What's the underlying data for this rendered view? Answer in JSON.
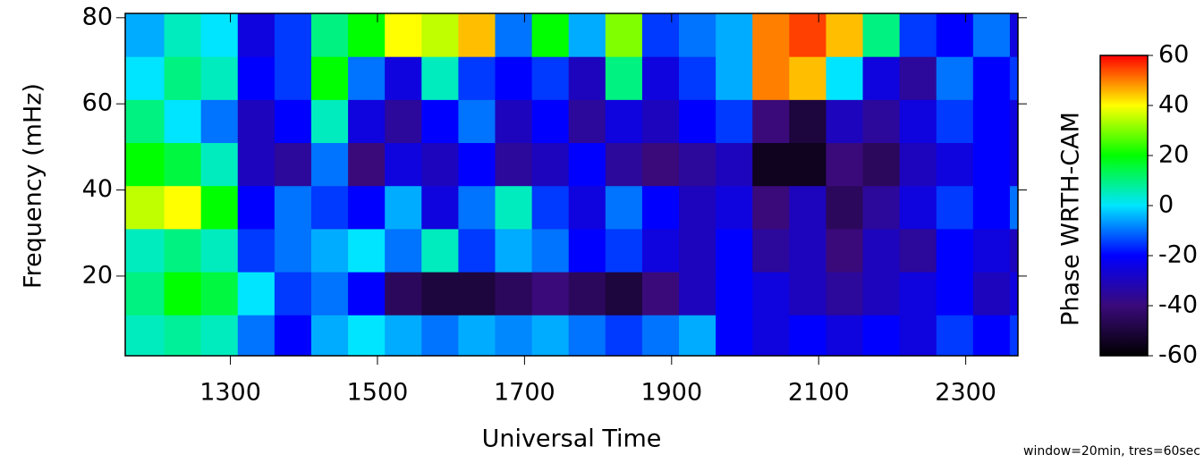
{
  "chart_data": {
    "type": "heatmap",
    "x_label": "Universal Time",
    "y_label": "Frequency (mHz)",
    "colorbar_label": "Phase WRTH-CAM",
    "note": "window=20min, tres=60sec",
    "xlim": [
      11.57,
      23.71
    ],
    "xticks": [
      {
        "value": 13,
        "label": "1300"
      },
      {
        "value": 15,
        "label": "1500"
      },
      {
        "value": 17,
        "label": "1700"
      },
      {
        "value": 19,
        "label": "1900"
      },
      {
        "value": 21,
        "label": "2100"
      },
      {
        "value": 23,
        "label": "2300"
      }
    ],
    "ylim": [
      1.5,
      81
    ],
    "yticks": [
      20,
      40,
      60,
      80
    ],
    "x_bins": [
      11.57,
      12.1,
      12.6,
      13.1,
      13.6,
      14.1,
      14.6,
      15.1,
      15.6,
      16.1,
      16.6,
      17.1,
      17.6,
      18.1,
      18.6,
      19.1,
      19.6,
      20.1,
      20.6,
      21.1,
      21.6,
      22.1,
      22.6,
      23.1,
      23.6,
      23.71
    ],
    "y_bins": [
      1.5,
      11,
      21,
      31,
      41,
      51,
      61,
      71,
      81
    ],
    "z": [
      [
        5,
        8,
        5,
        -10,
        -20,
        -5,
        0,
        -5,
        -10,
        -5,
        -8,
        -5,
        -10,
        -15,
        -10,
        -5,
        -20,
        -25,
        -20,
        -25,
        -20,
        -25,
        -15,
        -20,
        -15
      ],
      [
        10,
        20,
        15,
        0,
        -15,
        -10,
        -20,
        -45,
        -50,
        -50,
        -45,
        -40,
        -45,
        -50,
        -40,
        -30,
        -20,
        -25,
        -30,
        -35,
        -30,
        -25,
        -20,
        -30,
        -25
      ],
      [
        5,
        10,
        5,
        -15,
        -10,
        -5,
        0,
        -10,
        5,
        -15,
        -5,
        -10,
        -20,
        -15,
        -25,
        -30,
        -20,
        -35,
        -30,
        -40,
        -30,
        -35,
        -20,
        -25,
        -30
      ],
      [
        35,
        40,
        20,
        -20,
        -10,
        -15,
        -20,
        -5,
        -25,
        -10,
        5,
        -15,
        -25,
        -10,
        -20,
        -30,
        -25,
        -40,
        -30,
        -45,
        -35,
        -25,
        -15,
        -20,
        -10
      ],
      [
        20,
        15,
        5,
        -30,
        -35,
        -10,
        -40,
        -25,
        -30,
        -20,
        -35,
        -30,
        -20,
        -35,
        -40,
        -35,
        -30,
        -55,
        -55,
        -40,
        -45,
        -30,
        -25,
        -20,
        -25
      ],
      [
        10,
        0,
        -10,
        -30,
        -20,
        5,
        -25,
        -35,
        -20,
        -10,
        -30,
        -20,
        -35,
        -25,
        -30,
        -20,
        -15,
        -40,
        -50,
        -30,
        -35,
        -25,
        -15,
        -20,
        -25
      ],
      [
        0,
        10,
        5,
        -20,
        -15,
        20,
        -10,
        -25,
        5,
        -15,
        -20,
        -15,
        -30,
        10,
        -25,
        -15,
        -5,
        50,
        45,
        0,
        -25,
        -35,
        -10,
        -20,
        -15
      ],
      [
        -5,
        5,
        0,
        -25,
        -15,
        10,
        20,
        40,
        35,
        45,
        -10,
        20,
        -5,
        30,
        -15,
        -10,
        -5,
        50,
        55,
        45,
        10,
        -15,
        -20,
        -10,
        -25
      ]
    ],
    "zlim": [
      -60,
      60
    ],
    "zticks": [
      60,
      40,
      20,
      0,
      -20,
      -40,
      -60
    ],
    "colorscale": [
      "#000000",
      "#3a0a7a",
      "#0000ff",
      "#00e5ff",
      "#00ff00",
      "#ffff00",
      "#ff0000"
    ]
  }
}
